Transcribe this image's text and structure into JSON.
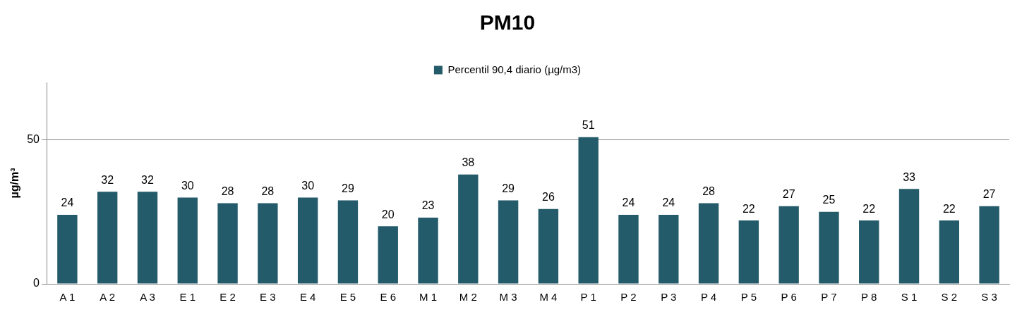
{
  "chart_data": {
    "type": "bar",
    "title": "PM10",
    "ylabel": "µg/m³",
    "categories": [
      "A 1",
      "A 2",
      "A 3",
      "E 1",
      "E 2",
      "E 3",
      "E 4",
      "E 5",
      "E 6",
      "M 1",
      "M 2",
      "M 3",
      "M 4",
      "P 1",
      "P 2",
      "P 3",
      "P 4",
      "P 5",
      "P 6",
      "P 7",
      "P 8",
      "S 1",
      "S 2",
      "S 3"
    ],
    "series": [
      {
        "name": "Percentil 90,4 diario (µg/m3)",
        "color": "#245b6a",
        "values": [
          24,
          32,
          32,
          30,
          28,
          28,
          30,
          29,
          20,
          23,
          38,
          29,
          26,
          51,
          24,
          24,
          28,
          22,
          27,
          25,
          22,
          33,
          22,
          27
        ]
      }
    ],
    "ylim": [
      0,
      70
    ],
    "yticks": [
      0,
      50
    ],
    "grid": "y",
    "legend": "top",
    "data_labels": true
  }
}
